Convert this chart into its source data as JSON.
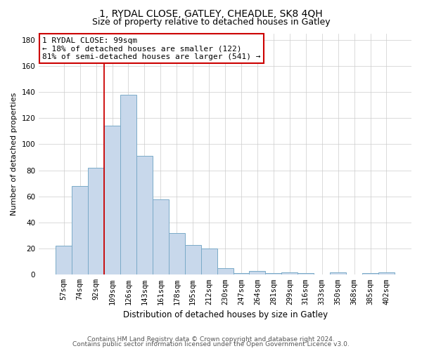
{
  "title1": "1, RYDAL CLOSE, GATLEY, CHEADLE, SK8 4QH",
  "title2": "Size of property relative to detached houses in Gatley",
  "xlabel": "Distribution of detached houses by size in Gatley",
  "ylabel": "Number of detached properties",
  "categories": [
    "57sqm",
    "74sqm",
    "92sqm",
    "109sqm",
    "126sqm",
    "143sqm",
    "161sqm",
    "178sqm",
    "195sqm",
    "212sqm",
    "230sqm",
    "247sqm",
    "264sqm",
    "281sqm",
    "299sqm",
    "316sqm",
    "333sqm",
    "350sqm",
    "368sqm",
    "385sqm",
    "402sqm"
  ],
  "values": [
    22,
    68,
    82,
    114,
    138,
    91,
    58,
    32,
    23,
    20,
    5,
    1,
    3,
    1,
    2,
    1,
    0,
    2,
    0,
    1,
    2
  ],
  "bar_color": "#c8d8eb",
  "bar_edge_color": "#7aaac8",
  "bar_linewidth": 0.7,
  "property_bin_index": 2,
  "vline_color": "#cc0000",
  "vline_linewidth": 1.3,
  "annotation_line1": "1 RYDAL CLOSE: 99sqm",
  "annotation_line2": "← 18% of detached houses are smaller (122)",
  "annotation_line3": "81% of semi-detached houses are larger (541) →",
  "annotation_box_color": "#ffffff",
  "annotation_box_edge": "#cc0000",
  "ylim": [
    0,
    185
  ],
  "yticks": [
    0,
    20,
    40,
    60,
    80,
    100,
    120,
    140,
    160,
    180
  ],
  "footer1": "Contains HM Land Registry data © Crown copyright and database right 2024.",
  "footer2": "Contains public sector information licensed under the Open Government Licence v3.0.",
  "bg_color": "#ffffff",
  "grid_color": "#cccccc",
  "title1_fontsize": 10,
  "title2_fontsize": 9,
  "xlabel_fontsize": 8.5,
  "ylabel_fontsize": 8,
  "tick_fontsize": 7.5,
  "annot_fontsize": 8,
  "footer_fontsize": 6.5
}
